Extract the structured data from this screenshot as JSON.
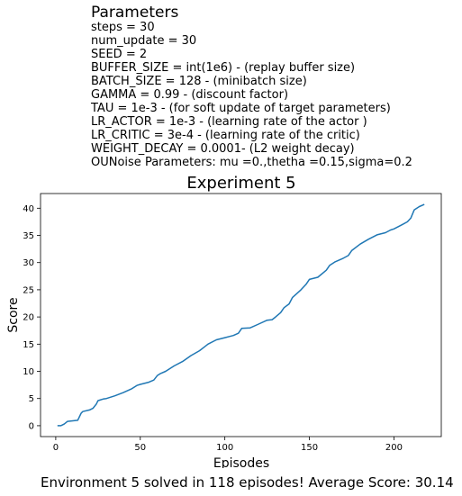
{
  "parameters": {
    "heading": "Parameters",
    "lines": [
      "steps = 30",
      "num_update = 30",
      "SEED = 2",
      "BUFFER_SIZE = int(1e6) - (replay buffer size)",
      "BATCH_SIZE = 128 - (minibatch size)",
      "GAMMA = 0.99 - (discount factor)",
      "TAU = 1e-3 - (for soft update of target parameters)",
      "LR_ACTOR = 1e-3 - (learning rate of the actor )",
      "LR_CRITIC = 3e-4 - (learning rate of the critic)",
      "WEIGHT_DECAY = 0.0001- (L2 weight decay)",
      "OUNoise Parameters: mu =0.,thetha =0.15,sigma=0.2"
    ]
  },
  "chart_data": {
    "type": "line",
    "title": "Experiment 5",
    "xlabel": "Episodes",
    "ylabel": "Score",
    "xlim": [
      -9,
      228
    ],
    "ylim": [
      -2,
      42.7
    ],
    "xticks": [
      0,
      50,
      100,
      150,
      200
    ],
    "yticks": [
      0,
      5,
      10,
      15,
      20,
      25,
      30,
      35,
      40
    ],
    "grid": false,
    "series": [
      {
        "color": "#1f77b4",
        "x": [
          1,
          3,
          5,
          7,
          10,
          13,
          15,
          16,
          20,
          22,
          24,
          25,
          26,
          28,
          30,
          35,
          40,
          45,
          48,
          50,
          55,
          58,
          60,
          62,
          65,
          70,
          75,
          80,
          85,
          88,
          90,
          95,
          100,
          105,
          108,
          110,
          115,
          120,
          125,
          128,
          130,
          133,
          135,
          138,
          140,
          145,
          148,
          150,
          155,
          160,
          162,
          165,
          170,
          173,
          175,
          180,
          185,
          190,
          195,
          198,
          200,
          205,
          208,
          210,
          212,
          215,
          218
        ],
        "y": [
          0.0,
          0.0,
          0.3,
          0.8,
          0.9,
          1.0,
          2.3,
          2.6,
          2.9,
          3.2,
          4.0,
          4.6,
          4.7,
          4.9,
          5.0,
          5.5,
          6.1,
          6.8,
          7.4,
          7.6,
          8.0,
          8.4,
          9.2,
          9.6,
          10.0,
          11.0,
          11.8,
          12.9,
          13.8,
          14.5,
          15.0,
          15.8,
          16.2,
          16.6,
          17.0,
          17.9,
          18.0,
          18.7,
          19.4,
          19.5,
          20.0,
          20.8,
          21.7,
          22.4,
          23.6,
          25.0,
          26.0,
          26.9,
          27.3,
          28.6,
          29.5,
          30.1,
          30.8,
          31.3,
          32.2,
          33.4,
          34.3,
          35.1,
          35.5,
          36.0,
          36.2,
          37.0,
          37.5,
          38.2,
          39.7,
          40.3,
          40.7
        ]
      }
    ]
  },
  "footer": "Environment 5 solved in 118 episodes! Average Score: 30.14"
}
